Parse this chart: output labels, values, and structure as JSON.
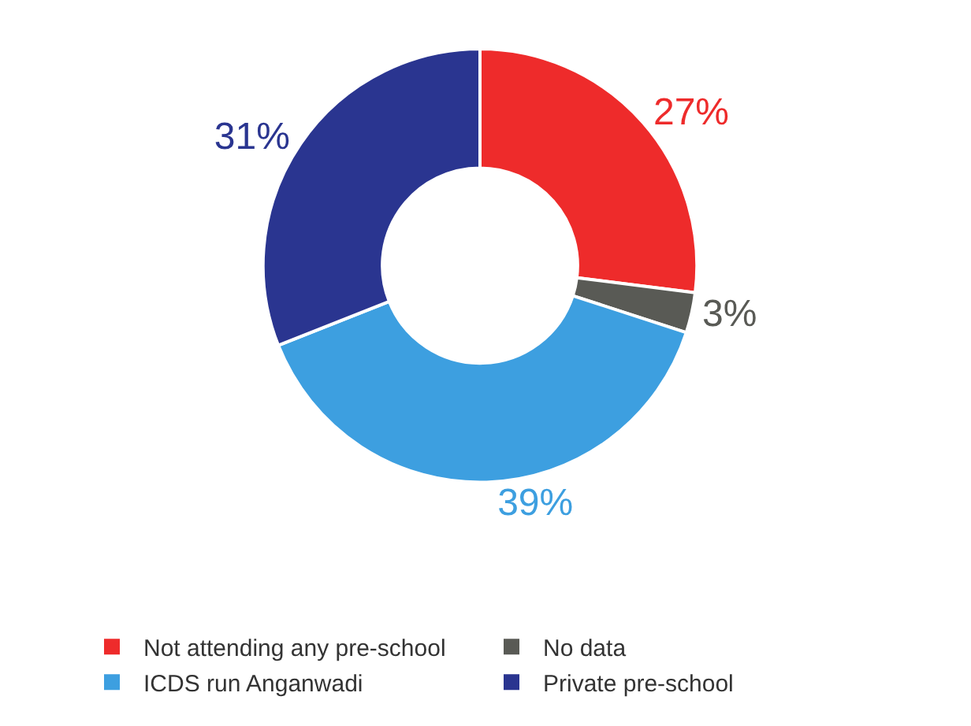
{
  "chart_data": {
    "type": "donut",
    "categories": [
      "Not attending any pre-school",
      "No data",
      "ICDS run Anganwadi",
      "Private pre-school"
    ],
    "values": [
      27,
      3,
      39,
      31
    ],
    "colors": [
      "#ee2b2b",
      "#595a55",
      "#3d9fe0",
      "#2a3590"
    ],
    "value_labels": [
      "27%",
      "3%",
      "39%",
      "31%"
    ],
    "legend": "bottom"
  }
}
